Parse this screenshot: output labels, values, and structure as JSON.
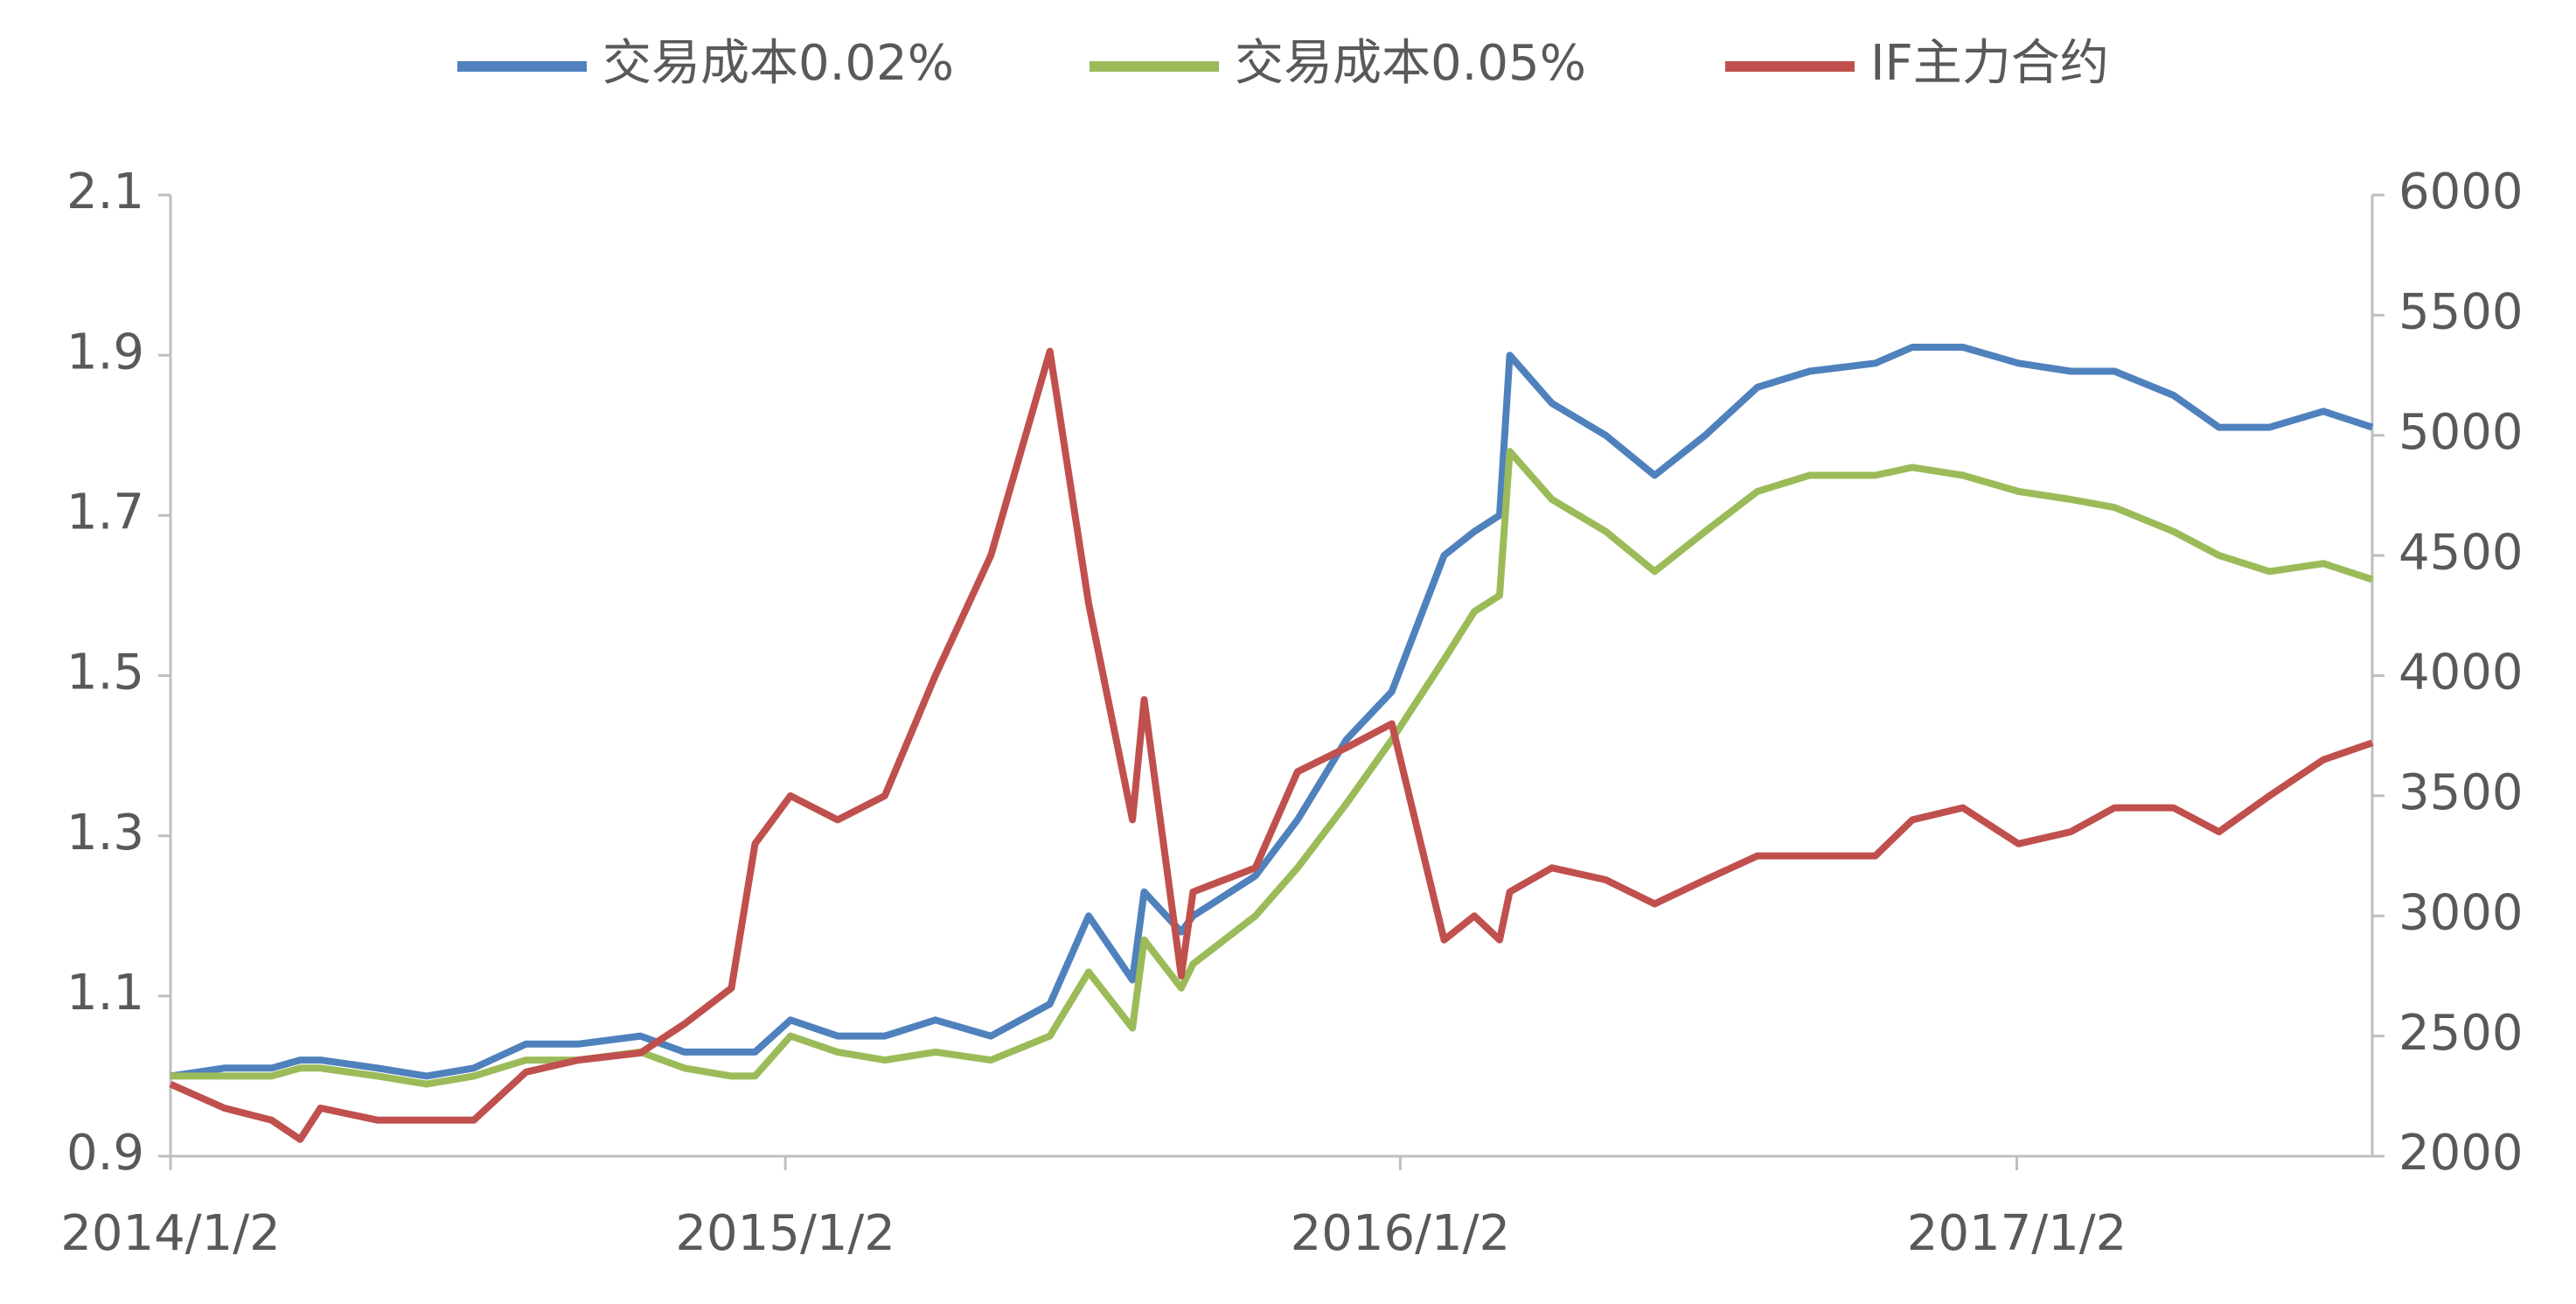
{
  "chart_data": {
    "type": "line",
    "x": [
      "2014/1/2",
      "2014/2/3",
      "2014/3/3",
      "2014/3/20",
      "2014/4/1",
      "2014/5/5",
      "2014/6/3",
      "2014/7/1",
      "2014/8/1",
      "2014/9/1",
      "2014/10/8",
      "2014/11/3",
      "2014/12/1",
      "2014/12/15",
      "2015/1/5",
      "2015/2/2",
      "2015/3/2",
      "2015/4/1",
      "2015/5/4",
      "2015/6/8",
      "2015/7/1",
      "2015/7/27",
      "2015/8/3",
      "2015/8/25",
      "2015/9/1",
      "2015/10/8",
      "2015/11/2",
      "2015/12/1",
      "2015/12/28",
      "2016/1/28",
      "2016/2/15",
      "2016/3/1",
      "2016/3/7",
      "2016/4/1",
      "2016/5/3",
      "2016/6/1",
      "2016/7/1",
      "2016/8/1",
      "2016/9/1",
      "2016/10/10",
      "2016/11/1",
      "2016/12/1",
      "2017/1/3",
      "2017/2/3",
      "2017/3/1",
      "2017/4/5",
      "2017/5/2",
      "2017/6/1",
      "2017/7/3",
      "2017/8/1"
    ],
    "xticks": [
      "2014/1/2",
      "2015/1/2",
      "2016/1/2",
      "2017/1/2"
    ],
    "xlim": [
      "2014/1/2",
      "2017/8/1"
    ],
    "ylim": [
      0.9,
      2.1
    ],
    "yticks": [
      0.9,
      1.1,
      1.3,
      1.5,
      1.7,
      1.9,
      2.1
    ],
    "y2lim": [
      2000,
      6000
    ],
    "y2ticks": [
      2000,
      2500,
      3000,
      3500,
      4000,
      4500,
      5000,
      5500,
      6000
    ],
    "series": [
      {
        "name": "交易成本0.02%",
        "color": "#4f81bd",
        "values": [
          1.0,
          1.01,
          1.01,
          1.02,
          1.02,
          1.01,
          1.0,
          1.01,
          1.04,
          1.04,
          1.05,
          1.03,
          1.03,
          1.03,
          1.07,
          1.05,
          1.05,
          1.07,
          1.05,
          1.09,
          1.2,
          1.12,
          1.23,
          1.18,
          1.2,
          1.25,
          1.32,
          1.42,
          1.48,
          1.65,
          1.68,
          1.7,
          1.9,
          1.84,
          1.8,
          1.75,
          1.8,
          1.86,
          1.88,
          1.89,
          1.91,
          1.91,
          1.89,
          1.88,
          1.88,
          1.85,
          1.81,
          1.81,
          1.83,
          1.81
        ]
      },
      {
        "name": "交易成本0.05%",
        "color": "#9bbb59",
        "values": [
          1.0,
          1.0,
          1.0,
          1.01,
          1.01,
          1.0,
          0.99,
          1.0,
          1.02,
          1.02,
          1.03,
          1.01,
          1.0,
          1.0,
          1.05,
          1.03,
          1.02,
          1.03,
          1.02,
          1.05,
          1.13,
          1.06,
          1.17,
          1.11,
          1.14,
          1.2,
          1.26,
          1.34,
          1.42,
          1.52,
          1.58,
          1.6,
          1.78,
          1.72,
          1.68,
          1.63,
          1.68,
          1.73,
          1.75,
          1.75,
          1.76,
          1.75,
          1.73,
          1.72,
          1.71,
          1.68,
          1.65,
          1.63,
          1.64,
          1.62
        ]
      },
      {
        "name": "IF主力合约",
        "color": "#c0504d",
        "axis": "y2",
        "values": [
          2300,
          2200,
          2150,
          2070,
          2200,
          2150,
          2150,
          2150,
          2350,
          2400,
          2430,
          2550,
          2700,
          3300,
          3500,
          3400,
          3500,
          4000,
          4500,
          5350,
          4300,
          3400,
          3900,
          2750,
          3100,
          3200,
          3600,
          3700,
          3800,
          2900,
          3000,
          2900,
          3100,
          3200,
          3150,
          3050,
          3150,
          3250,
          3250,
          3250,
          3400,
          3450,
          3300,
          3350,
          3450,
          3450,
          3350,
          3500,
          3650,
          3720
        ]
      }
    ]
  }
}
